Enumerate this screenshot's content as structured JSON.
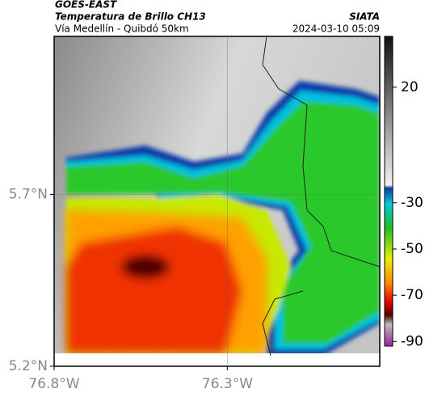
{
  "header": {
    "source": "GOES-EAST",
    "title": "Temperatura de Brillo CH13",
    "subtitle": "Vía Medellín - Quibdó 50km",
    "org": "SIATA",
    "datetime": "2024-03-10 05:09"
  },
  "map": {
    "xlim": [
      -76.8,
      -75.86
    ],
    "ylim": [
      5.2,
      6.16
    ],
    "xticks": [
      {
        "value": -76.8,
        "label": "76.8°W"
      },
      {
        "value": -76.3,
        "label": "76.3°W"
      }
    ],
    "yticks": [
      {
        "value": 5.2,
        "label": "5.2°N"
      },
      {
        "value": 5.7,
        "label": "5.7°N"
      }
    ]
  },
  "colorbar": {
    "lim": [
      42,
      -92
    ],
    "ticks": [
      20,
      -30,
      -50,
      -70,
      -90
    ]
  }
}
